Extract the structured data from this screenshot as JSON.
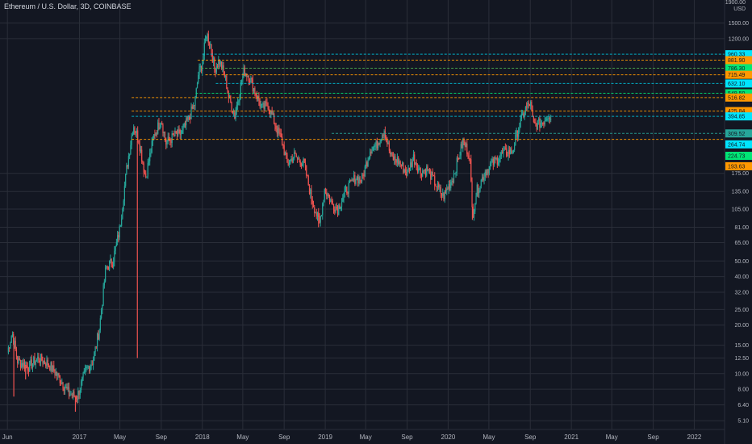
{
  "header": {
    "title": "Ethereum / U.S. Dollar, 3D, COINBASE"
  },
  "axis": {
    "unit_top": "1900.00",
    "unit": "USD"
  },
  "chart_data": {
    "type": "candlestick",
    "title": "Ethereum / U.S. Dollar, 3D, COINBASE",
    "yscale": "log",
    "ylim": [
      4.5,
      1900
    ],
    "xlim": [
      "2016-05-10",
      "2022-04-01"
    ],
    "grid": true,
    "y_tick_labels": [
      "1500.00",
      "1200.00",
      "175.00",
      "135.00",
      "105.00",
      "81.00",
      "65.00",
      "50.00",
      "40.00",
      "32.00",
      "25.00",
      "20.00",
      "15.00",
      "12.50",
      "10.00",
      "8.00",
      "6.40",
      "5.10"
    ],
    "x_tick_labels": [
      {
        "date": "2016-06-01",
        "label": "Jun"
      },
      {
        "date": "2017-01-01",
        "label": "2017"
      },
      {
        "date": "2017-05-01",
        "label": "May"
      },
      {
        "date": "2017-09-01",
        "label": "Sep"
      },
      {
        "date": "2018-01-01",
        "label": "2018"
      },
      {
        "date": "2018-05-01",
        "label": "May"
      },
      {
        "date": "2018-09-01",
        "label": "Sep"
      },
      {
        "date": "2019-01-01",
        "label": "2019"
      },
      {
        "date": "2019-05-01",
        "label": "May"
      },
      {
        "date": "2019-09-01",
        "label": "Sep"
      },
      {
        "date": "2020-01-01",
        "label": "2020"
      },
      {
        "date": "2020-05-01",
        "label": "May"
      },
      {
        "date": "2020-09-01",
        "label": "Sep"
      },
      {
        "date": "2021-01-01",
        "label": "2021"
      },
      {
        "date": "2021-05-01",
        "label": "May"
      },
      {
        "date": "2021-09-01",
        "label": "Sep"
      },
      {
        "date": "2022-01-01",
        "label": "2022"
      }
    ],
    "levels": [
      {
        "price": 960.33,
        "label": "960.33",
        "color": "#00bcd4",
        "start": "2018-01-01"
      },
      {
        "price": 881.9,
        "label": "881.90",
        "color": "#ff9800",
        "start": "2017-12-18"
      },
      {
        "price": 786.3,
        "label": "786.30",
        "color": "#4caf50",
        "start": "2017-12-28"
      },
      {
        "price": 715.49,
        "label": "715.49",
        "color": "#ff9800",
        "start": "2018-01-10"
      },
      {
        "price": 632.1,
        "label": "632.10",
        "color": "#00bcd4",
        "start": "2018-02-10"
      },
      {
        "price": 549.5,
        "label": "549.50",
        "color": "#00e676",
        "start": "2017-12-12"
      },
      {
        "price": 516.82,
        "label": "516.82",
        "color": "#ff9800",
        "start": "2017-06-05"
      },
      {
        "price": 425.84,
        "label": "425.84",
        "color": "#ff9800",
        "start": "2017-06-05"
      },
      {
        "price": 394.85,
        "label": "394.85",
        "color": "#00bcd4",
        "start": "2017-06-05"
      },
      {
        "price": 309.52,
        "label": "309.52",
        "color": "#26a69a",
        "start": "2019-01-20"
      },
      {
        "price": 284.2,
        "label": "",
        "color": "#ff9800",
        "start": "2017-06-05"
      }
    ],
    "right_badges": [
      {
        "price": 960.33,
        "label": "960.33",
        "color": "#00e5ff"
      },
      {
        "price": 881.9,
        "label": "881.90",
        "color": "#ff9800"
      },
      {
        "price": 786.3,
        "label": "786.30",
        "color": "#00e676"
      },
      {
        "price": 715.49,
        "label": "715.49",
        "color": "#ff9800"
      },
      {
        "price": 632.1,
        "label": "632.10",
        "color": "#00e5ff"
      },
      {
        "price": 549.5,
        "label": "549.50",
        "color": "#00e676"
      },
      {
        "price": 516.82,
        "label": "516.82",
        "color": "#ff9800"
      },
      {
        "price": 425.84,
        "label": "425.84",
        "color": "#ff9800"
      },
      {
        "price": 394.85,
        "label": "394.85",
        "color": "#00e5ff"
      },
      {
        "price": 309.52,
        "label": "309.52",
        "color": "#26a69a"
      },
      {
        "price": 264.74,
        "label": "264.74",
        "color": "#00e5ff"
      },
      {
        "price": 224.73,
        "label": "224.73",
        "color": "#00e676"
      },
      {
        "price": 193.63,
        "label": "193.63",
        "color": "#ff9800"
      }
    ],
    "colors": {
      "up": "#26a69a",
      "down": "#ef5350",
      "grid": "#2a2e39"
    },
    "close_path": [
      {
        "date": "2016-06-01",
        "close": 13.5
      },
      {
        "date": "2016-06-15",
        "close": 18
      },
      {
        "date": "2016-07-01",
        "close": 12
      },
      {
        "date": "2016-08-01",
        "close": 11
      },
      {
        "date": "2016-09-01",
        "close": 12.5
      },
      {
        "date": "2016-10-01",
        "close": 11.5
      },
      {
        "date": "2016-11-01",
        "close": 9.5
      },
      {
        "date": "2016-12-01",
        "close": 7.5
      },
      {
        "date": "2016-12-25",
        "close": 7.2
      },
      {
        "date": "2017-01-20",
        "close": 10.5
      },
      {
        "date": "2017-02-10",
        "close": 12
      },
      {
        "date": "2017-03-01",
        "close": 19
      },
      {
        "date": "2017-03-20",
        "close": 45
      },
      {
        "date": "2017-04-10",
        "close": 50
      },
      {
        "date": "2017-05-01",
        "close": 80
      },
      {
        "date": "2017-05-20",
        "close": 180
      },
      {
        "date": "2017-06-10",
        "close": 350
      },
      {
        "date": "2017-06-25",
        "close": 290
      },
      {
        "date": "2017-07-16",
        "close": 165
      },
      {
        "date": "2017-08-10",
        "close": 300
      },
      {
        "date": "2017-09-01",
        "close": 380
      },
      {
        "date": "2017-09-15",
        "close": 270
      },
      {
        "date": "2017-10-10",
        "close": 300
      },
      {
        "date": "2017-11-01",
        "close": 310
      },
      {
        "date": "2017-11-20",
        "close": 380
      },
      {
        "date": "2017-12-10",
        "close": 480
      },
      {
        "date": "2017-12-20",
        "close": 720
      },
      {
        "date": "2018-01-01",
        "close": 850
      },
      {
        "date": "2018-01-13",
        "close": 1300
      },
      {
        "date": "2018-01-25",
        "close": 1100
      },
      {
        "date": "2018-02-06",
        "close": 780
      },
      {
        "date": "2018-02-20",
        "close": 880
      },
      {
        "date": "2018-03-10",
        "close": 690
      },
      {
        "date": "2018-03-20",
        "close": 520
      },
      {
        "date": "2018-04-07",
        "close": 400
      },
      {
        "date": "2018-04-25",
        "close": 620
      },
      {
        "date": "2018-05-05",
        "close": 760
      },
      {
        "date": "2018-05-20",
        "close": 700
      },
      {
        "date": "2018-06-10",
        "close": 540
      },
      {
        "date": "2018-06-28",
        "close": 440
      },
      {
        "date": "2018-07-15",
        "close": 470
      },
      {
        "date": "2018-08-10",
        "close": 330
      },
      {
        "date": "2018-08-25",
        "close": 280
      },
      {
        "date": "2018-09-10",
        "close": 200
      },
      {
        "date": "2018-10-01",
        "close": 225
      },
      {
        "date": "2018-10-30",
        "close": 200
      },
      {
        "date": "2018-11-20",
        "close": 125
      },
      {
        "date": "2018-12-15",
        "close": 85
      },
      {
        "date": "2018-12-30",
        "close": 140
      },
      {
        "date": "2019-01-20",
        "close": 115
      },
      {
        "date": "2019-02-07",
        "close": 105
      },
      {
        "date": "2019-03-01",
        "close": 135
      },
      {
        "date": "2019-04-01",
        "close": 165
      },
      {
        "date": "2019-04-20",
        "close": 160
      },
      {
        "date": "2019-05-15",
        "close": 250
      },
      {
        "date": "2019-06-01",
        "close": 260
      },
      {
        "date": "2019-06-25",
        "close": 330
      },
      {
        "date": "2019-07-15",
        "close": 220
      },
      {
        "date": "2019-08-05",
        "close": 210
      },
      {
        "date": "2019-09-01",
        "close": 175
      },
      {
        "date": "2019-09-20",
        "close": 220
      },
      {
        "date": "2019-10-10",
        "close": 180
      },
      {
        "date": "2019-11-01",
        "close": 185
      },
      {
        "date": "2019-11-25",
        "close": 150
      },
      {
        "date": "2019-12-17",
        "close": 125
      },
      {
        "date": "2020-01-15",
        "close": 165
      },
      {
        "date": "2020-02-14",
        "close": 275
      },
      {
        "date": "2020-03-05",
        "close": 230
      },
      {
        "date": "2020-03-13",
        "close": 95
      },
      {
        "date": "2020-03-25",
        "close": 135
      },
      {
        "date": "2020-04-20",
        "close": 180
      },
      {
        "date": "2020-05-15",
        "close": 205
      },
      {
        "date": "2020-06-15",
        "close": 235
      },
      {
        "date": "2020-07-10",
        "close": 240
      },
      {
        "date": "2020-07-25",
        "close": 320
      },
      {
        "date": "2020-08-15",
        "close": 430
      },
      {
        "date": "2020-09-01",
        "close": 480
      },
      {
        "date": "2020-09-10",
        "close": 350
      },
      {
        "date": "2020-09-25",
        "close": 355
      },
      {
        "date": "2020-10-10",
        "close": 370
      },
      {
        "date": "2020-10-25",
        "close": 410
      },
      {
        "date": "2020-11-01",
        "close": 395
      }
    ],
    "spikes": [
      {
        "date": "2016-06-20",
        "low": 7.2
      },
      {
        "date": "2016-07-25",
        "low": 9.2
      },
      {
        "date": "2016-12-20",
        "low": 5.8
      },
      {
        "date": "2017-06-22",
        "low": 12.5
      },
      {
        "date": "2018-12-12",
        "low": 81
      },
      {
        "date": "2020-03-13",
        "low": 90
      }
    ]
  }
}
